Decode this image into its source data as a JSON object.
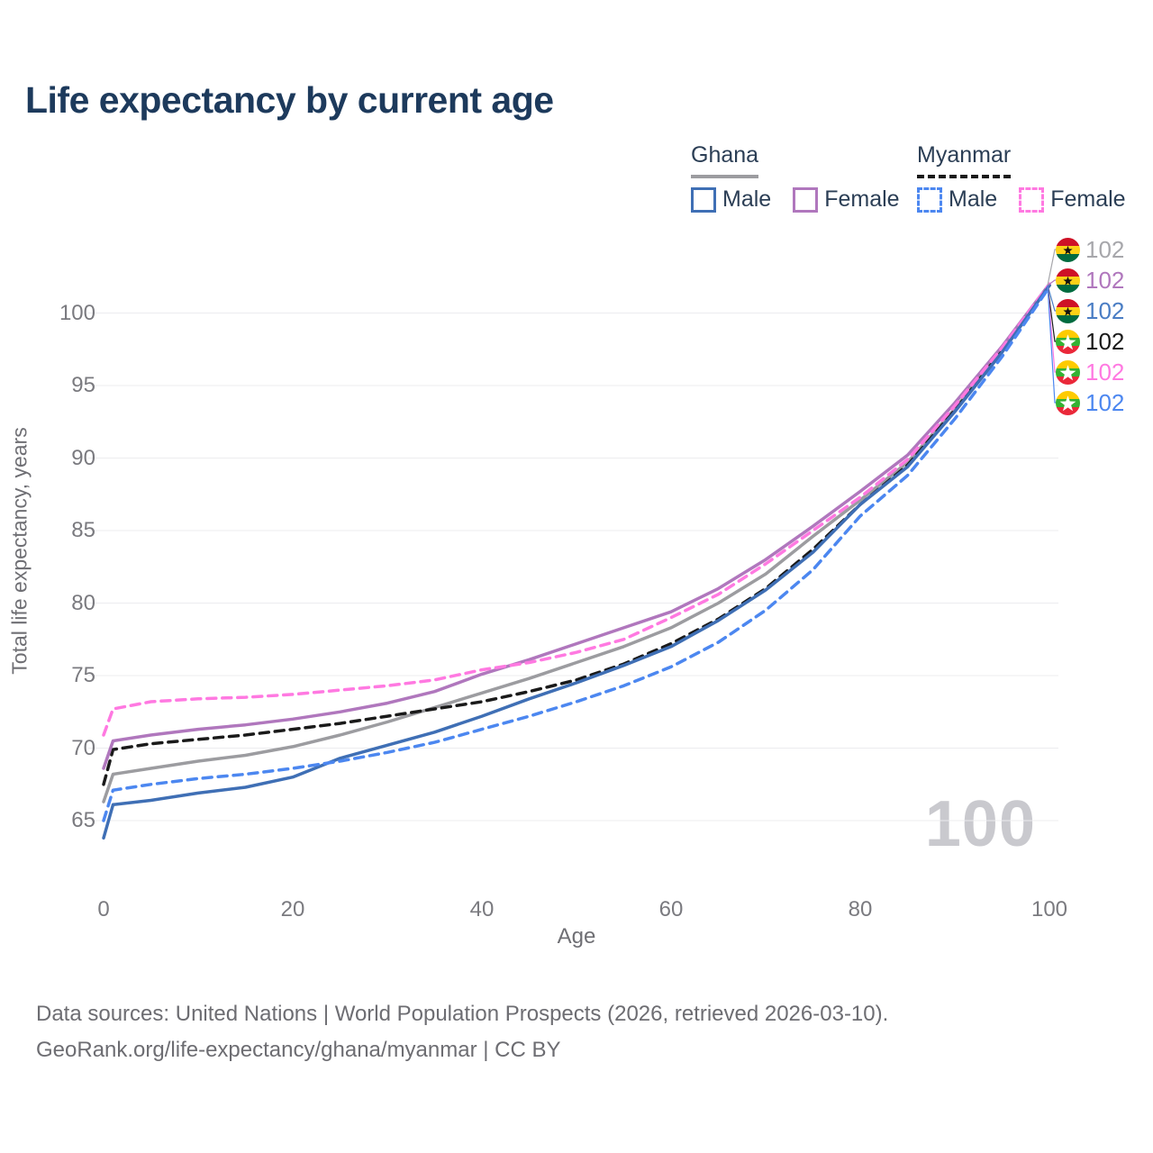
{
  "title": "Life expectancy by current age",
  "legend": {
    "groups": [
      {
        "country": "Ghana",
        "line_style": "solid",
        "line_color": "#9c9ca0",
        "items": [
          {
            "label": "Male",
            "color": "#3f6fb5",
            "dashed": false
          },
          {
            "label": "Female",
            "color": "#b077bd",
            "dashed": false
          }
        ]
      },
      {
        "country": "Myanmar",
        "line_style": "dashed",
        "line_color": "#1a1a1a",
        "items": [
          {
            "label": "Male",
            "color": "#4c87f0",
            "dashed": true
          },
          {
            "label": "Female",
            "color": "#ff79e1",
            "dashed": true
          }
        ]
      }
    ]
  },
  "chart_data": {
    "type": "line",
    "title": "Life expectancy by current age",
    "xlabel": "Age",
    "ylabel": "Total life expectancy, years",
    "x_ticks": [
      0,
      20,
      40,
      60,
      80,
      100
    ],
    "y_ticks": [
      65,
      70,
      75,
      80,
      85,
      90,
      95,
      100
    ],
    "xlim": [
      0,
      100
    ],
    "ylim": [
      60,
      106
    ],
    "grid": "horizontal-only",
    "legend_position": "top-right",
    "x": [
      0,
      1,
      5,
      10,
      15,
      20,
      25,
      30,
      35,
      40,
      45,
      50,
      55,
      60,
      65,
      70,
      75,
      80,
      85,
      90,
      95,
      100
    ],
    "series": [
      {
        "id": "ghana-total",
        "name": "Ghana",
        "country": "Ghana",
        "sex": "Both",
        "color": "#9c9ca0",
        "dashed": false,
        "values": [
          66.3,
          68.2,
          68.6,
          69.1,
          69.5,
          70.1,
          70.9,
          71.8,
          72.8,
          73.8,
          74.8,
          75.9,
          77.0,
          78.3,
          80.0,
          82.0,
          84.6,
          87.1,
          89.7,
          93.4,
          97.5,
          101.9
        ]
      },
      {
        "id": "myanmar-total",
        "name": "Myanmar",
        "country": "Myanmar",
        "sex": "Both",
        "color": "#1a1a1a",
        "dashed": true,
        "values": [
          67.5,
          69.9,
          70.3,
          70.6,
          70.9,
          71.3,
          71.7,
          72.2,
          72.7,
          73.2,
          73.9,
          74.7,
          75.8,
          77.2,
          78.9,
          81.0,
          83.7,
          86.8,
          89.5,
          93.3,
          97.4,
          101.9
        ]
      },
      {
        "id": "ghana-female",
        "name": "Ghana Female",
        "country": "Ghana",
        "sex": "Female",
        "color": "#b077bd",
        "dashed": false,
        "values": [
          68.6,
          70.5,
          70.9,
          71.3,
          71.6,
          72.0,
          72.5,
          73.1,
          73.9,
          75.1,
          76.1,
          77.2,
          78.3,
          79.4,
          81.0,
          83.0,
          85.3,
          87.7,
          90.2,
          93.8,
          97.7,
          102.0
        ]
      },
      {
        "id": "myanmar-female",
        "name": "Myanmar Female",
        "country": "Myanmar",
        "sex": "Female",
        "color": "#ff79e1",
        "dashed": true,
        "values": [
          70.9,
          72.7,
          73.2,
          73.4,
          73.5,
          73.7,
          74.0,
          74.3,
          74.7,
          75.4,
          75.9,
          76.6,
          77.5,
          79.0,
          80.6,
          82.7,
          85.0,
          87.3,
          89.9,
          93.6,
          97.6,
          102.0
        ]
      },
      {
        "id": "ghana-male",
        "name": "Ghana Male",
        "country": "Ghana",
        "sex": "Male",
        "color": "#3f6fb5",
        "dashed": false,
        "values": [
          63.8,
          66.1,
          66.4,
          66.9,
          67.3,
          68.0,
          69.3,
          70.2,
          71.1,
          72.2,
          73.4,
          74.5,
          75.7,
          77.0,
          78.8,
          80.9,
          83.5,
          86.8,
          89.4,
          93.2,
          97.3,
          101.9
        ]
      },
      {
        "id": "myanmar-male",
        "name": "Myanmar Male",
        "country": "Myanmar",
        "sex": "Male",
        "color": "#4c87f0",
        "dashed": true,
        "values": [
          65.0,
          67.1,
          67.5,
          67.9,
          68.2,
          68.6,
          69.1,
          69.7,
          70.4,
          71.3,
          72.2,
          73.2,
          74.3,
          75.6,
          77.3,
          79.5,
          82.3,
          86.0,
          88.8,
          92.7,
          97.0,
          101.8
        ]
      }
    ]
  },
  "end_labels": [
    {
      "flag": "ghana",
      "value": "102",
      "color": "#a7a7ab"
    },
    {
      "flag": "ghana",
      "value": "102",
      "color": "#b077bd"
    },
    {
      "flag": "ghana",
      "value": "102",
      "color": "#4a7dc4"
    },
    {
      "flag": "myanmar",
      "value": "102",
      "color": "#1a1a1a"
    },
    {
      "flag": "myanmar",
      "value": "102",
      "color": "#ff79e1"
    },
    {
      "flag": "myanmar",
      "value": "102",
      "color": "#4c87f0"
    }
  ],
  "hover_value": "100",
  "footer": {
    "line1": "Data sources: United Nations | World Population Prospects (2026, retrieved 2026-03-10).",
    "line2": "GeoRank.org/life-expectancy/ghana/myanmar | CC BY"
  }
}
